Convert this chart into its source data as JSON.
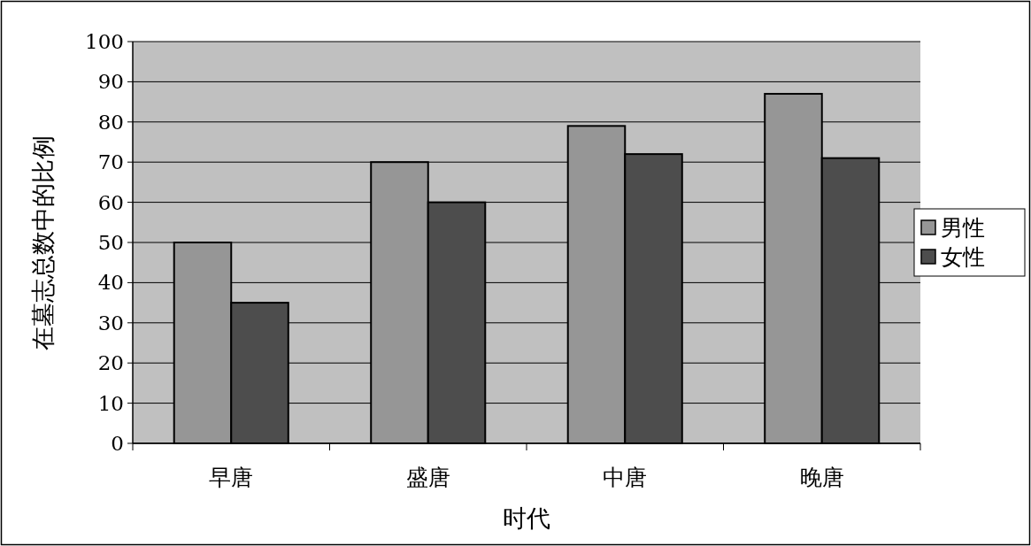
{
  "chart_data": {
    "type": "bar",
    "xlabel": "时代",
    "ylabel": "在墓志总数中的比例",
    "categories": [
      "早唐",
      "盛唐",
      "中唐",
      "晚唐"
    ],
    "series": [
      {
        "name": "男性",
        "color": "#969696",
        "values": [
          50,
          70,
          79,
          87
        ]
      },
      {
        "name": "女性",
        "color": "#4d4d4d",
        "values": [
          35,
          60,
          72,
          71
        ]
      }
    ],
    "ylim": [
      0,
      100
    ],
    "yticks": [
      0,
      10,
      20,
      30,
      40,
      50,
      60,
      70,
      80,
      90,
      100
    ],
    "grid": "y",
    "legend": "right"
  }
}
